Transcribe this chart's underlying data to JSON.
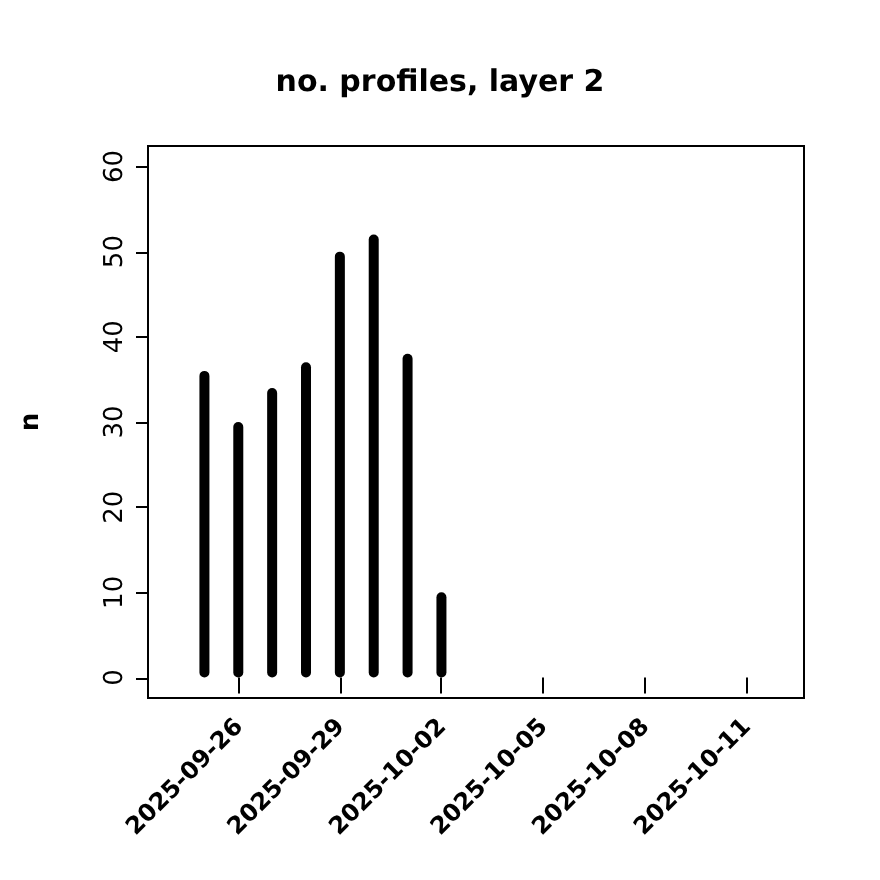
{
  "chart_data": {
    "type": "bar",
    "title": "no. profiles, layer 2",
    "ylabel": "n",
    "color": "#000000",
    "x": [
      "2025-09-25",
      "2025-09-26",
      "2025-09-27",
      "2025-09-28",
      "2025-09-29",
      "2025-09-30",
      "2025-10-01",
      "2025-10-02",
      "2025-10-03",
      "2025-10-04",
      "2025-10-05",
      "2025-10-06",
      "2025-10-07",
      "2025-10-08",
      "2025-10-09",
      "2025-10-10",
      "2025-10-11"
    ],
    "values": [
      36,
      30,
      34,
      37,
      50,
      52,
      38,
      10,
      0,
      0,
      0,
      0,
      0,
      0,
      0,
      0,
      0
    ],
    "xlim": [
      "2025-09-23T08:00",
      "2025-10-12T17:00"
    ],
    "xticks": [
      {
        "value": "2025-09-26",
        "label": "2025-09-26"
      },
      {
        "value": "2025-09-29",
        "label": "2025-09-29"
      },
      {
        "value": "2025-10-02",
        "label": "2025-10-02"
      },
      {
        "value": "2025-10-05",
        "label": "2025-10-05"
      },
      {
        "value": "2025-10-08",
        "label": "2025-10-08"
      },
      {
        "value": "2025-10-11",
        "label": "2025-10-11"
      }
    ],
    "ylim": [
      -2.4,
      62.4
    ],
    "yticks": [
      0,
      10,
      20,
      30,
      40,
      50,
      60
    ],
    "grid": false
  }
}
